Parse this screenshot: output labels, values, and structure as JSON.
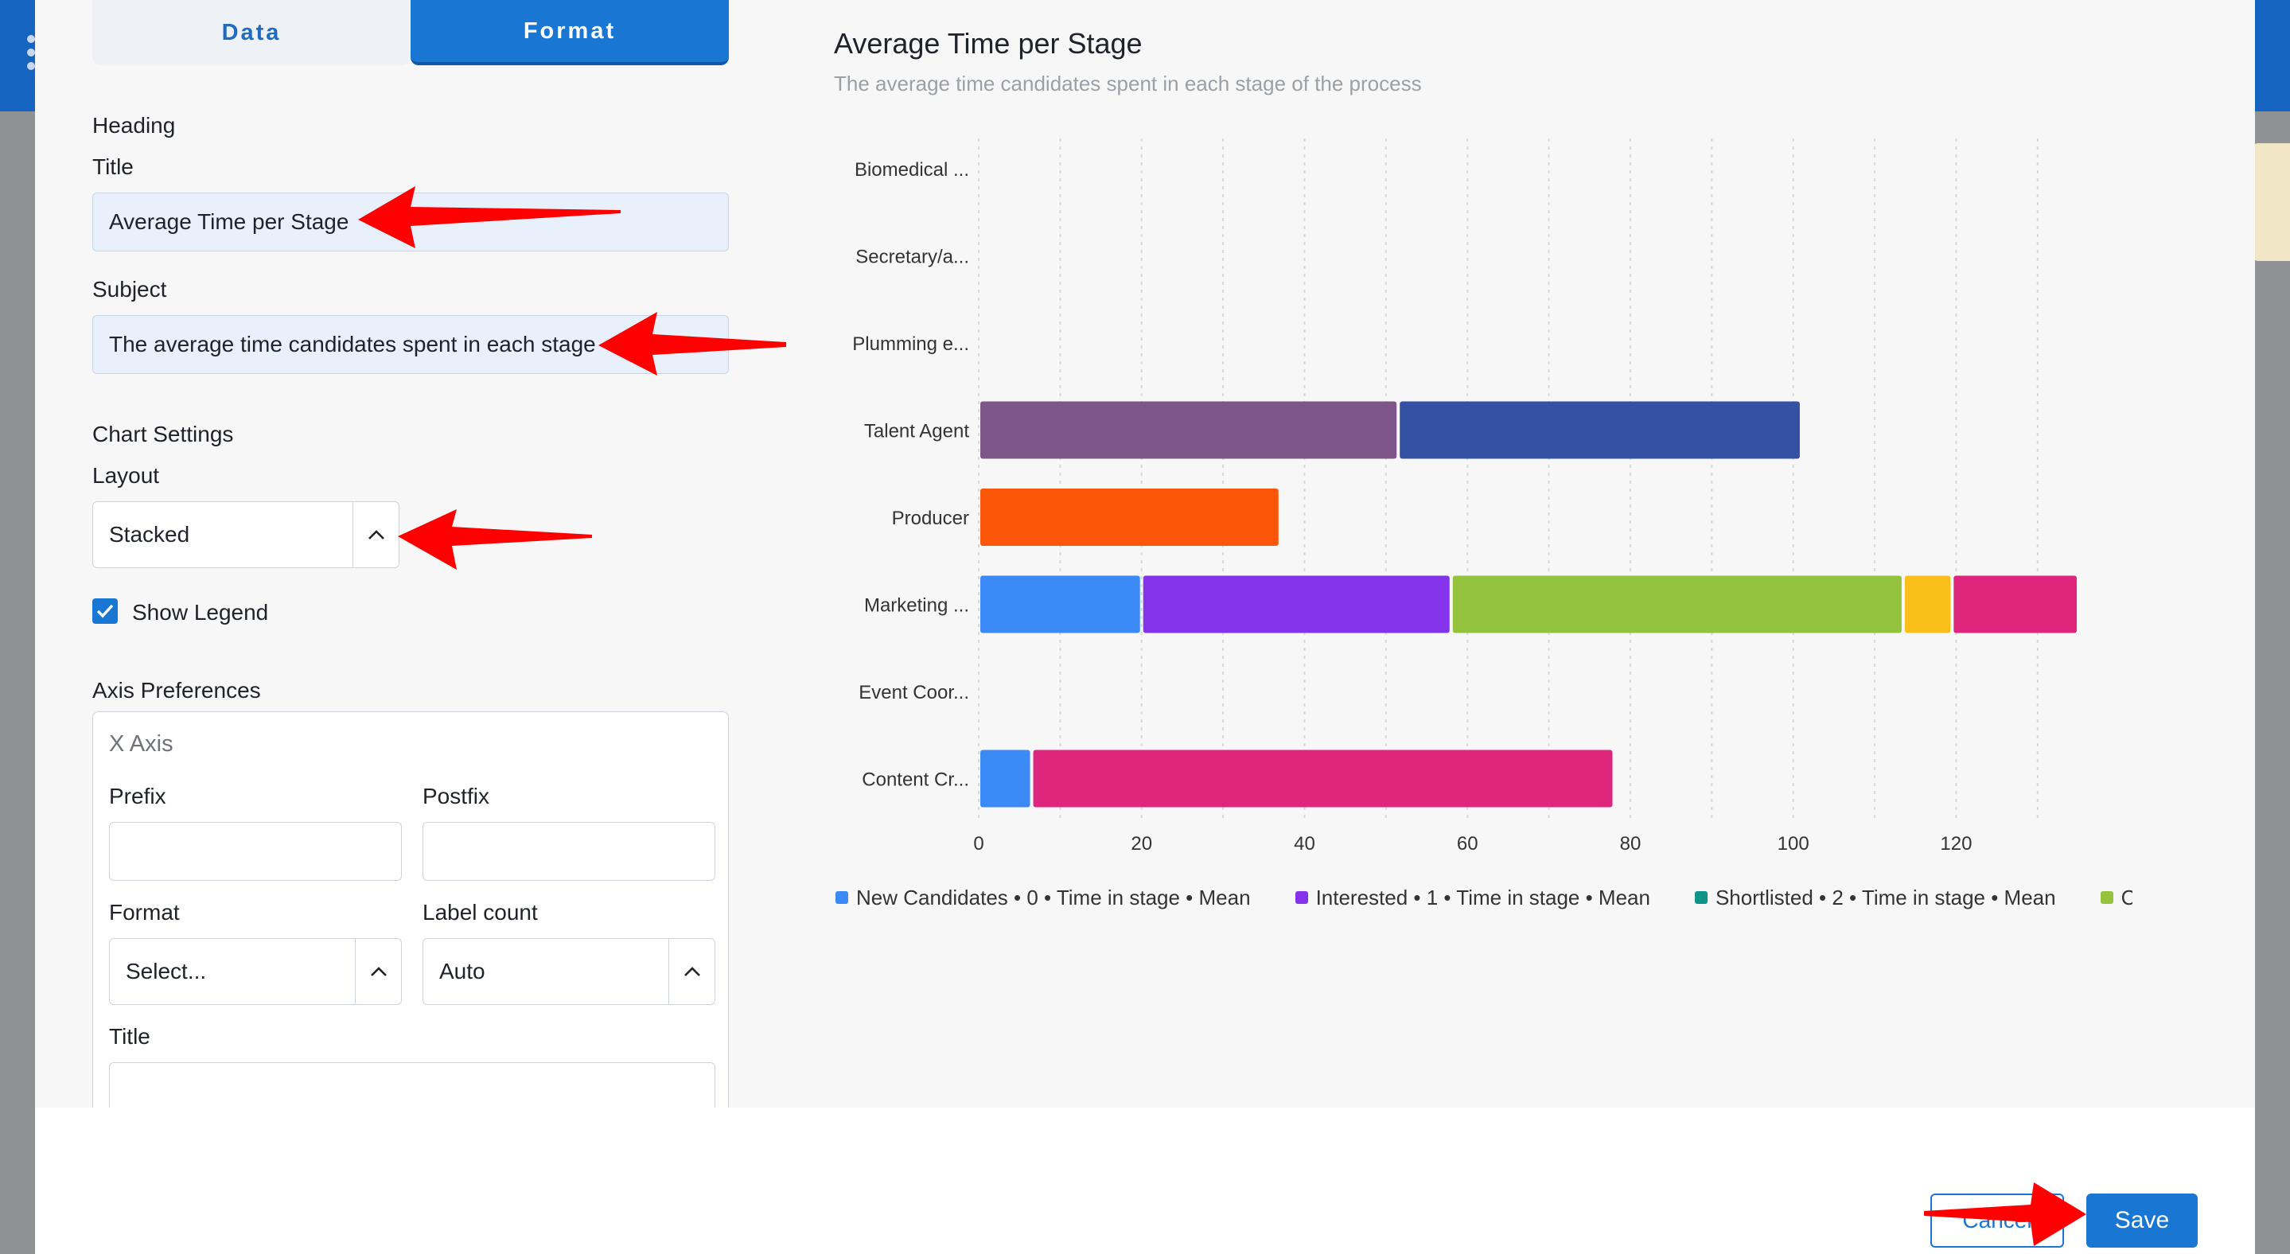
{
  "tabs": {
    "data": "Data",
    "format": "Format"
  },
  "heading": {
    "section_label": "Heading",
    "title_label": "Title",
    "title_value": "Average Time per Stage",
    "subject_label": "Subject",
    "subject_value": "The average time candidates spent in each stage"
  },
  "chart_settings": {
    "section_label": "Chart Settings",
    "layout_label": "Layout",
    "layout_value": "Stacked",
    "show_legend_label": "Show Legend",
    "show_legend_checked": true
  },
  "axis_preferences": {
    "section_label": "Axis Preferences",
    "x_axis_label": "X Axis",
    "prefix_label": "Prefix",
    "prefix_value": "",
    "postfix_label": "Postfix",
    "postfix_value": "",
    "format_label": "Format",
    "format_value": "Select...",
    "label_count_label": "Label count",
    "label_count_value": "Auto",
    "title_label": "Title",
    "title_value": ""
  },
  "chart_data": {
    "type": "bar",
    "orientation": "horizontal",
    "stacked": true,
    "title": "Average Time per Stage",
    "subtitle": "The average time candidates spent in each stage of the process",
    "categories": [
      "Biomedical ...",
      "Secretary/a...",
      "Plumming e...",
      "Talent Agent",
      "Producer",
      "Marketing ...",
      "Event Coor...",
      "Content Cr..."
    ],
    "xlim": [
      0,
      135
    ],
    "x_ticks": [
      "0",
      "20",
      "40",
      "60",
      "80",
      "100",
      "120"
    ],
    "grid": "vertical dotted",
    "legend_placement": "bottom",
    "series": [
      {
        "name": "New Candidates • 0 • Time in stage • Mean",
        "color": "#3b8af5",
        "values": [
          0,
          0,
          0,
          0,
          0,
          20,
          0,
          6.5
        ]
      },
      {
        "name": "Interested • 1 • Time in stage • Mean",
        "color": "#8433ea",
        "values": [
          0,
          0,
          0,
          0,
          0,
          38,
          0,
          0
        ]
      },
      {
        "name": "Shortlisted • 2 • Time in stage • Mean",
        "color": "#0f9488",
        "values": [
          0,
          0,
          0,
          0,
          0,
          0,
          0,
          0
        ]
      },
      {
        "name": "Client S",
        "color": "#93c23d",
        "values": [
          0,
          0,
          0,
          0,
          0,
          55.5,
          0,
          0
        ]
      },
      {
        "color": "#fbbf1c",
        "values": [
          0,
          0,
          0,
          0,
          0,
          6,
          0,
          0
        ]
      },
      {
        "color": "#df267d",
        "values": [
          0,
          0,
          0,
          0,
          0,
          15.5,
          0,
          71.5
        ]
      },
      {
        "color": "#7f5689",
        "values": [
          0,
          0,
          0,
          51.5,
          0,
          0,
          0,
          0
        ]
      },
      {
        "color": "#3451a3",
        "values": [
          0,
          0,
          0,
          49.5,
          0,
          0,
          0,
          0
        ]
      },
      {
        "color": "#fc560b",
        "values": [
          0,
          0,
          0,
          0,
          37,
          0,
          0,
          0
        ]
      }
    ]
  },
  "legend": [
    {
      "label": "New Candidates • 0 • Time in stage • Mean",
      "color": "#3b8af5"
    },
    {
      "label": "Interested • 1 • Time in stage • Mean",
      "color": "#8433ea"
    },
    {
      "label": "Shortlisted • 2 • Time in stage • Mean",
      "color": "#0f9488"
    },
    {
      "label": "Client S",
      "color": "#93c23d"
    }
  ],
  "footer": {
    "cancel_label": "Cancel",
    "save_label": "Save"
  },
  "colors": {
    "primary": "#1976d2",
    "annotation_arrow": "#ff0000"
  }
}
